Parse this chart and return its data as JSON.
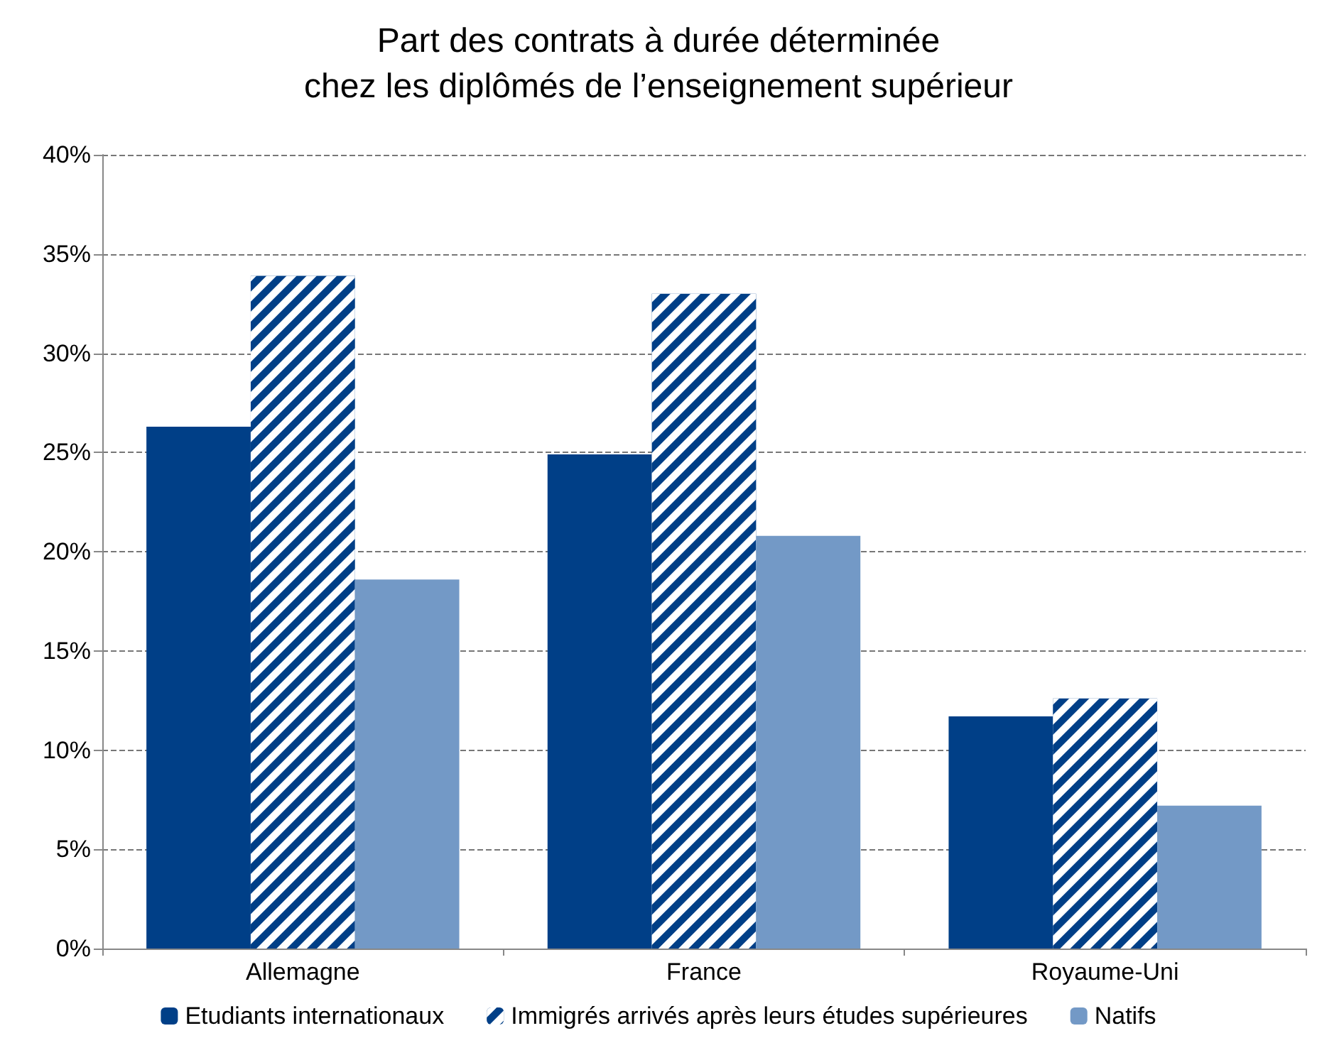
{
  "chart_data": {
    "type": "bar",
    "title": "Part des contrats à durée déterminée\nchez les diplômés de l’enseignement supérieur",
    "categories": [
      "Allemagne",
      "France",
      "Royaume-Uni"
    ],
    "series": [
      {
        "name": "Etudiants internationaux",
        "color": "#003f87",
        "values": [
          26.3,
          24.9,
          11.7
        ]
      },
      {
        "name": "Immigrés arrivés après leurs études supérieures",
        "color": "#003f87",
        "values": [
          33.9,
          33.0,
          12.6
        ]
      },
      {
        "name": "Natifs",
        "color": "#7399c6",
        "values": [
          18.6,
          20.8,
          7.2
        ]
      }
    ],
    "ylim": [
      0,
      40
    ],
    "yticks": [
      {
        "value": 0,
        "label": "0%"
      },
      {
        "value": 5,
        "label": "5%"
      },
      {
        "value": 10,
        "label": "10%"
      },
      {
        "value": 15,
        "label": "15%"
      },
      {
        "value": 20,
        "label": "20%"
      },
      {
        "value": 25,
        "label": "25%"
      },
      {
        "value": 30,
        "label": "30%"
      },
      {
        "value": 35,
        "label": "35%"
      },
      {
        "value": 40,
        "label": "40%"
      }
    ],
    "grid": "y",
    "legend": "bottom"
  }
}
